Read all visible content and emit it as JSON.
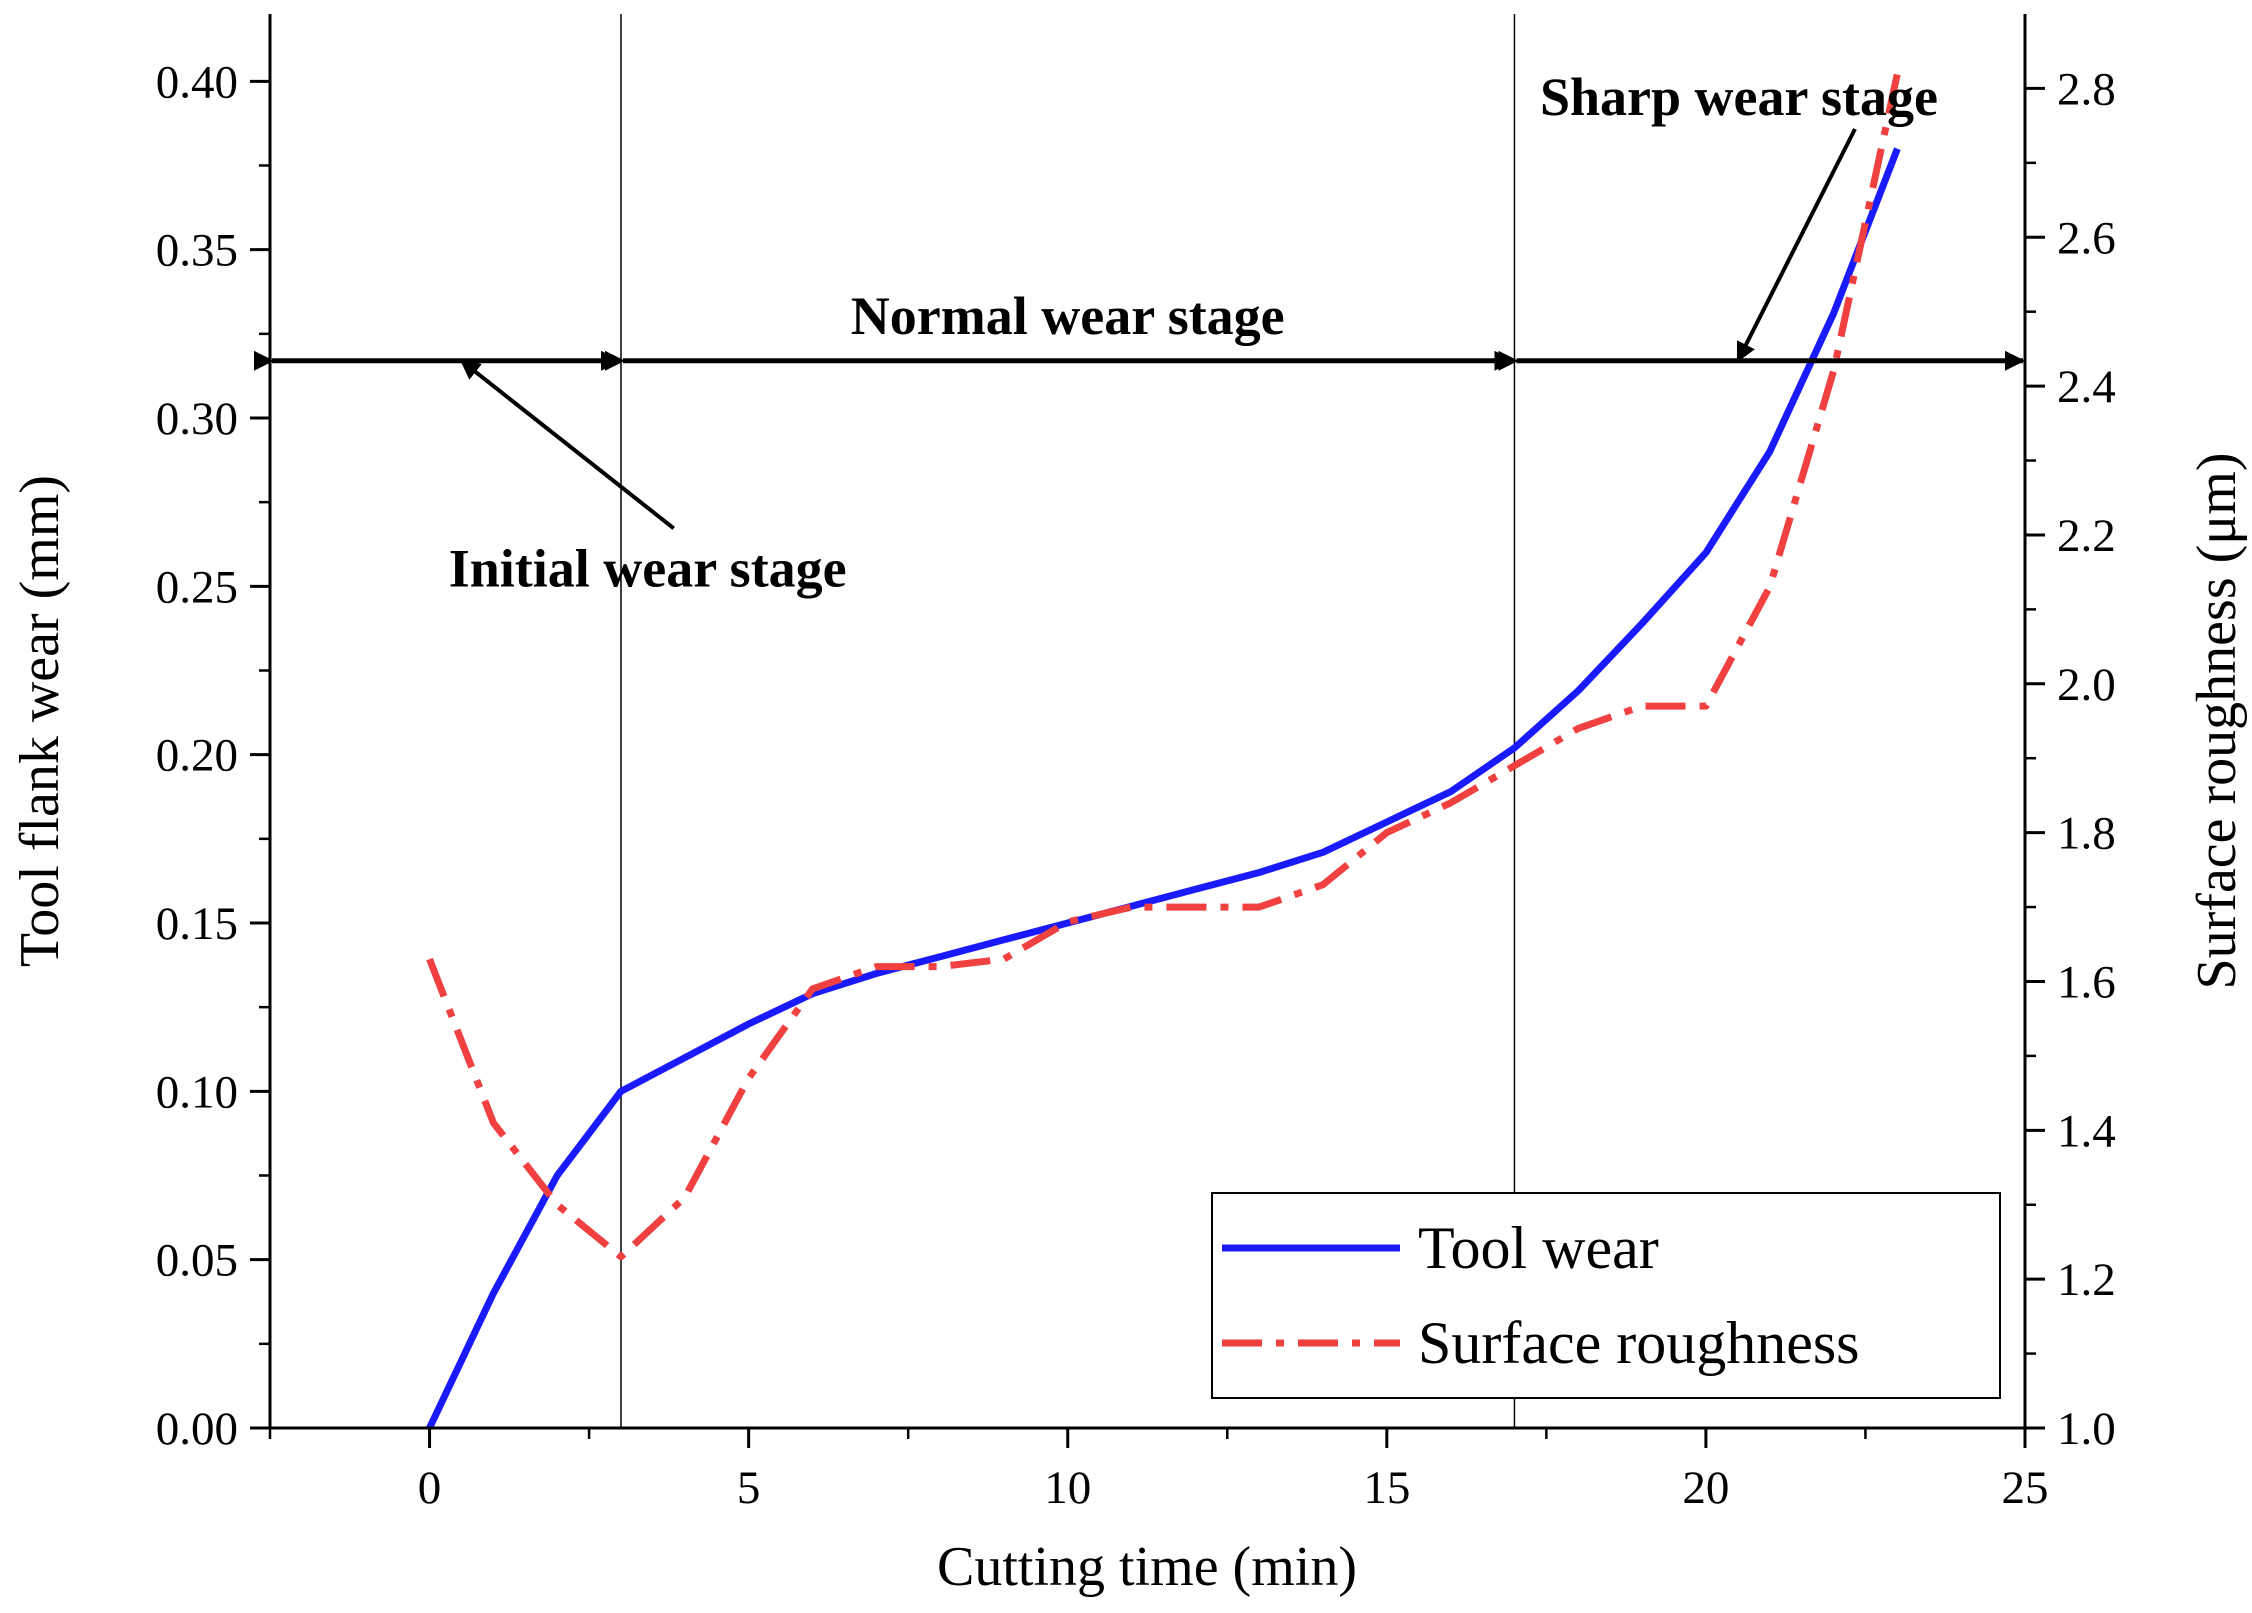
{
  "chart_data": {
    "type": "line",
    "title": "",
    "xlabel": "Cutting time (min)",
    "ylabel": "Tool flank wear (mm)",
    "y2label": "Surface roughness (μm)",
    "xlim": [
      -2.5,
      25
    ],
    "ylim": [
      0,
      0.42
    ],
    "y2lim": [
      1.0,
      2.9
    ],
    "x_ticks": [
      0,
      5,
      10,
      15,
      20,
      25
    ],
    "y_ticks": [
      "0.00",
      "0.05",
      "0.10",
      "0.15",
      "0.20",
      "0.25",
      "0.30",
      "0.35",
      "0.40"
    ],
    "y2_ticks": [
      "1.0",
      "1.2",
      "1.4",
      "1.6",
      "1.8",
      "2.0",
      "2.2",
      "2.4",
      "2.6",
      "2.8"
    ],
    "grid": false,
    "legend_position": "bottom-right",
    "series": [
      {
        "name": "Tool wear",
        "axis": "left",
        "color": "#1a1aff",
        "style": "solid",
        "x": [
          0,
          1,
          2,
          3,
          4,
          5,
          6,
          7,
          8,
          9,
          10,
          11,
          12,
          13,
          14,
          15,
          16,
          17,
          18,
          19,
          20,
          21,
          22,
          23
        ],
        "values": [
          0.0,
          0.04,
          0.075,
          0.1,
          0.11,
          0.12,
          0.129,
          0.135,
          0.14,
          0.145,
          0.15,
          0.155,
          0.16,
          0.165,
          0.171,
          0.18,
          0.189,
          0.202,
          0.219,
          0.239,
          0.26,
          0.29,
          0.331,
          0.38
        ]
      },
      {
        "name": "Surface roughness",
        "axis": "right",
        "color": "#f04040",
        "style": "dashdot",
        "x": [
          0,
          1,
          2,
          3,
          4,
          5,
          6,
          7,
          8,
          9,
          10,
          11,
          12,
          13,
          14,
          15,
          16,
          17,
          18,
          19,
          20,
          21,
          22,
          23
        ],
        "values": [
          1.63,
          1.41,
          1.3,
          1.23,
          1.31,
          1.47,
          1.59,
          1.62,
          1.62,
          1.63,
          1.68,
          1.7,
          1.7,
          1.7,
          1.73,
          1.8,
          1.84,
          1.89,
          1.94,
          1.97,
          1.97,
          2.13,
          2.42,
          2.82
        ]
      }
    ],
    "stage_boundaries": [
      3,
      17
    ],
    "stage_arrow_y": 0.317,
    "annotations": [
      {
        "id": "initial",
        "text": "Initial wear stage",
        "point_x": 0.5,
        "point_y": 0.317,
        "text_x": 0.3,
        "text_y": 0.25
      },
      {
        "id": "normal",
        "text": "Normal wear stage",
        "text_x": 10,
        "text_y": 0.325
      },
      {
        "id": "sharp",
        "text": "Sharp wear stage",
        "point_x": 20.5,
        "point_y": 0.317,
        "text_x": 17.4,
        "text_y": 0.39
      }
    ]
  }
}
